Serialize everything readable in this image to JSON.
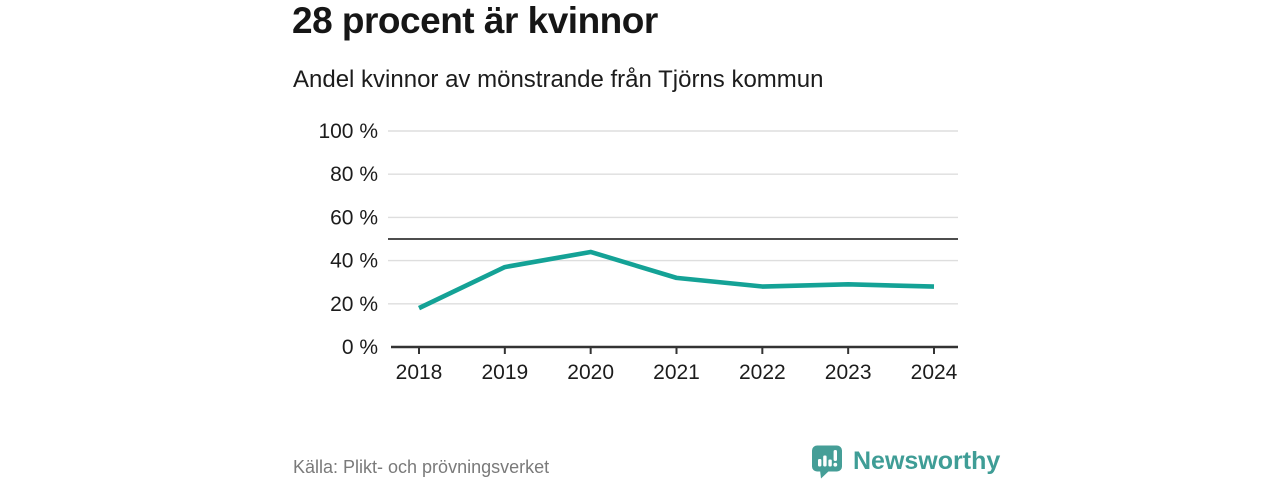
{
  "title": "28 procent är kvinnor",
  "subtitle": "Andel kvinnor av mönstrande från Tjörns kommun",
  "source": "Källa: Plikt- och prövningsverket",
  "brand": {
    "name": "Newsworthy",
    "logo_icon": "bar-chart-speech-bubble-icon",
    "color": "#459e97"
  },
  "colors": {
    "line": "#14a296",
    "grid": "#dedede",
    "reference_line": "#4d4d4d",
    "axis": "#333333",
    "text": "#1c1c1c",
    "muted_text": "#7a7a7a"
  },
  "chart_data": {
    "type": "line",
    "title": "28 procent är kvinnor",
    "subtitle": "Andel kvinnor av mönstrande från Tjörns kommun",
    "x": [
      2018,
      2019,
      2020,
      2021,
      2022,
      2023,
      2024
    ],
    "series": [
      {
        "name": "Andel kvinnor av mönstrande",
        "values": [
          18,
          37,
          44,
          32,
          28,
          29,
          28
        ]
      }
    ],
    "ylim": [
      0,
      100
    ],
    "yticks": [
      0,
      20,
      40,
      60,
      80,
      100
    ],
    "ytick_suffix": " %",
    "reference_line": 50,
    "grid": true,
    "legend": false
  }
}
